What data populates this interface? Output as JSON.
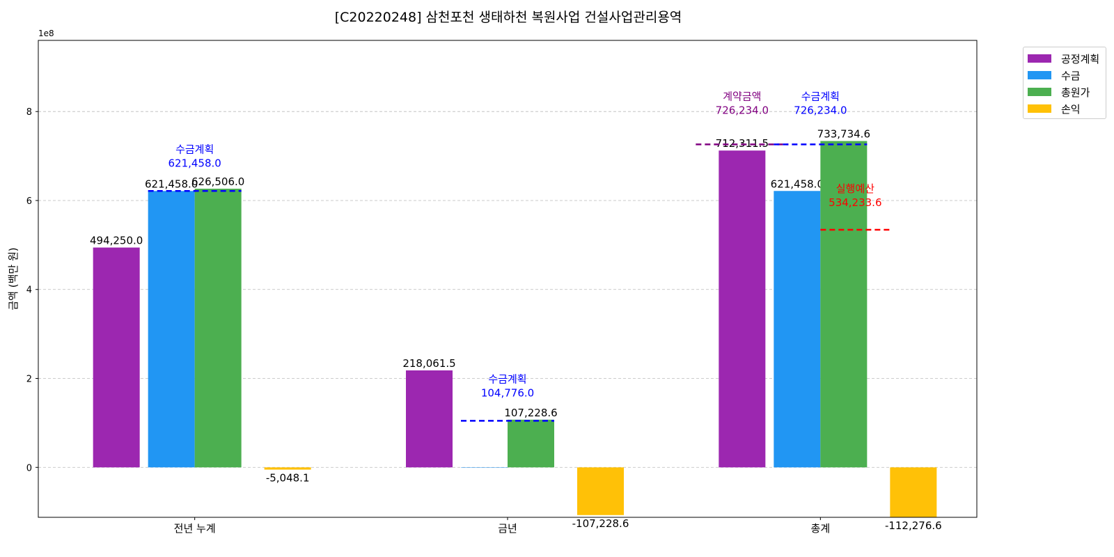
{
  "chart_data": {
    "type": "bar",
    "title": "[C20220248] 삼천포천 생태하천 복원사업 건설사업관리용역",
    "ylabel": "금액 (백만 원)",
    "xlabel": "",
    "y_offset_label": "1e8",
    "y_scale_factor": 100000000,
    "ylim": [
      -112276.6,
      960000
    ],
    "yticks": [
      0,
      200000,
      400000,
      600000,
      800000
    ],
    "ytick_labels": [
      "0",
      "2",
      "4",
      "6",
      "8"
    ],
    "grid": true,
    "legend_position": "outside-top-right",
    "categories": [
      "전년 누계",
      "금년",
      "총계"
    ],
    "series": [
      {
        "name": "공정계획",
        "color": "#9C27B0",
        "values": [
          494250.0,
          218061.5,
          712311.5
        ],
        "labels": [
          "494,250.0",
          "218,061.5",
          "712,311.5"
        ]
      },
      {
        "name": "수금",
        "color": "#2196F3",
        "values": [
          621458.0,
          0,
          621458.0
        ],
        "labels": [
          "621,458.0",
          "",
          "621,458.0"
        ]
      },
      {
        "name": "총원가",
        "color": "#4CAF50",
        "values": [
          626506.0,
          107228.6,
          733734.6
        ],
        "labels": [
          "626,506.0",
          "107,228.6",
          "733,734.6"
        ]
      },
      {
        "name": "손익",
        "color": "#FFC107",
        "values": [
          -5048.1,
          -107228.6,
          -112276.6
        ],
        "labels": [
          "-5,048.1",
          "-107,228.6",
          "-112,276.6"
        ]
      }
    ],
    "reference_lines": [
      {
        "category_index": 0,
        "label": "수금계획",
        "value": 621458.0,
        "value_text": "621,458.0",
        "color": "#0000FF",
        "span": "수금-총원가"
      },
      {
        "category_index": 1,
        "label": "수금계획",
        "value": 104776.0,
        "value_text": "104,776.0",
        "color": "#0000FF",
        "span": "수금-총원가"
      },
      {
        "category_index": 2,
        "label": "계약금액",
        "value": 726234.0,
        "value_text": "726,234.0",
        "color": "#800080",
        "span": "공정계획"
      },
      {
        "category_index": 2,
        "label": "수금계획",
        "value": 726234.0,
        "value_text": "726,234.0",
        "color": "#0000FF",
        "span": "수금-총원가"
      },
      {
        "category_index": 2,
        "label": "실행예산",
        "value": 534233.6,
        "value_text": "534,233.6",
        "color": "#FF0000",
        "span": "총원가-손익"
      }
    ]
  }
}
